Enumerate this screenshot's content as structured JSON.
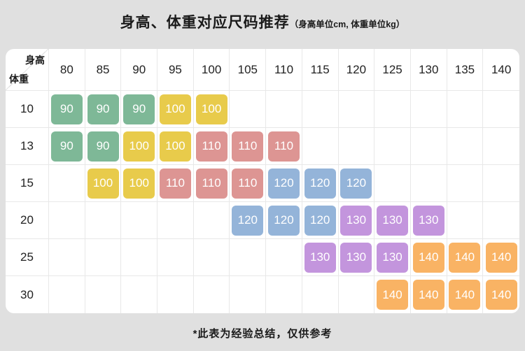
{
  "title": {
    "main": "身高、体重对应尺码推荐",
    "sub": "（身高单位cm, 体重单位kg）"
  },
  "corner": {
    "height_label": "身高",
    "weight_label": "体重"
  },
  "footer": {
    "note": "*此表为经验总结，仅供参考"
  },
  "chart_data": {
    "type": "table",
    "title": "身高、体重对应尺码推荐",
    "subtitle": "（身高单位cm, 体重单位kg）",
    "x_axis_label": "身高 (cm)",
    "y_axis_label": "体重 (kg)",
    "columns_height_cm": [
      "80",
      "85",
      "90",
      "95",
      "100",
      "105",
      "110",
      "115",
      "120",
      "125",
      "130",
      "135",
      "140"
    ],
    "rows_weight_kg": [
      "10",
      "13",
      "15",
      "20",
      "25",
      "30"
    ],
    "cells_size": [
      [
        "90",
        "90",
        "90",
        "100",
        "100",
        null,
        null,
        null,
        null,
        null,
        null,
        null,
        null
      ],
      [
        "90",
        "90",
        "100",
        "100",
        "110",
        "110",
        "110",
        null,
        null,
        null,
        null,
        null,
        null
      ],
      [
        null,
        "100",
        "100",
        "110",
        "110",
        "110",
        "120",
        "120",
        "120",
        null,
        null,
        null,
        null
      ],
      [
        null,
        null,
        null,
        null,
        null,
        "120",
        "120",
        "120",
        "130",
        "130",
        "130",
        null,
        null
      ],
      [
        null,
        null,
        null,
        null,
        null,
        null,
        null,
        "130",
        "130",
        "130",
        "140",
        "140",
        "140"
      ],
      [
        null,
        null,
        null,
        null,
        null,
        null,
        null,
        null,
        null,
        "140",
        "140",
        "140",
        "140"
      ]
    ],
    "size_colors": {
      "90": "#7eb897",
      "100": "#e8cb4b",
      "110": "#dd9593",
      "120": "#94b4d9",
      "130": "#c395dd",
      "140": "#f9b364"
    },
    "note": "*此表为经验总结，仅供参考"
  }
}
